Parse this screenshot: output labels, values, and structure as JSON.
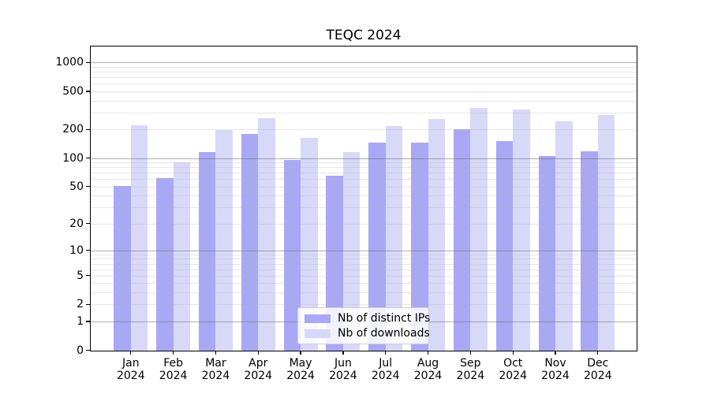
{
  "chart_data": {
    "type": "bar",
    "title": "TEQC 2024",
    "categories": [
      "Jan",
      "Feb",
      "Mar",
      "Apr",
      "May",
      "Jun",
      "Jul",
      "Aug",
      "Sep",
      "Oct",
      "Nov",
      "Dec"
    ],
    "category_year": "2024",
    "series": [
      {
        "name": "Nb of distinct IPs",
        "color": "#a8a8f4",
        "values": [
          51,
          61,
          116,
          180,
          95,
          65,
          145,
          145,
          200,
          151,
          105,
          119
        ]
      },
      {
        "name": "Nb of downloads",
        "color": "#d8d8f9",
        "values": [
          220,
          91,
          198,
          260,
          163,
          116,
          216,
          258,
          338,
          321,
          243,
          282
        ]
      }
    ],
    "y_axis": {
      "scale": "log10(1+v)",
      "tick_values": [
        0,
        1,
        2,
        5,
        10,
        20,
        50,
        100,
        200,
        500,
        1000
      ],
      "major_grid_values": [
        1,
        10,
        100,
        1000
      ],
      "max": 1480,
      "grid": true
    },
    "x_axis": {
      "tick_label_line2": "2024"
    },
    "legend": {
      "position": "lower center",
      "entries": [
        "Nb of distinct IPs",
        "Nb of downloads"
      ]
    },
    "colors": {
      "bar_distinct_ips": "#a8a8f4",
      "bar_downloads": "#d8d8f9",
      "major_grid": "#b2b2b2",
      "minor_grid": "#ededed",
      "axes": "#000000"
    }
  }
}
